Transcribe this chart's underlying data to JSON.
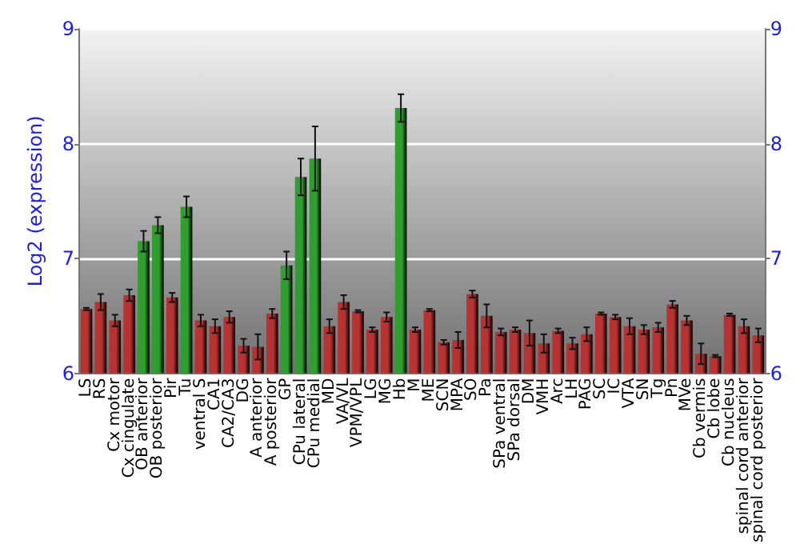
{
  "chart_data": {
    "type": "bar",
    "ylabel": "Log2 (expression)",
    "categories": [
      "LS",
      "RS",
      "Cx motor",
      "Cx cingulate",
      "OB anterior",
      "OB posterior",
      "Pir",
      "Tu",
      "ventral S",
      "CA1",
      "CA2/CA3",
      "DG",
      "A anterior",
      "A posterior",
      "GP",
      "CPu lateral",
      "CPu medial",
      "MD",
      "VA/VL",
      "VPM/VPL",
      "LG",
      "MG",
      "Hb",
      "M",
      "ME",
      "SCN",
      "MPA",
      "SO",
      "Pa",
      "SPa ventral",
      "SPa dorsal",
      "DM",
      "VMH",
      "Arc",
      "LH",
      "PAG",
      "SC",
      "IC",
      "VTA",
      "SN",
      "Tg",
      "Pn",
      "MVe",
      "Cb vermis",
      "Cb lobe",
      "Cb nucleus",
      "spinal cord anterior",
      "spinal cord posterior"
    ],
    "values": [
      6.56,
      6.62,
      6.46,
      6.68,
      7.15,
      7.29,
      6.66,
      7.45,
      6.46,
      6.41,
      6.49,
      6.24,
      6.23,
      6.52,
      6.94,
      7.71,
      7.87,
      6.41,
      6.62,
      6.54,
      6.38,
      6.49,
      8.31,
      6.38,
      6.55,
      6.27,
      6.29,
      6.69,
      6.5,
      6.36,
      6.38,
      6.35,
      6.26,
      6.37,
      6.26,
      6.34,
      6.52,
      6.49,
      6.41,
      6.38,
      6.4,
      6.6,
      6.46,
      6.17,
      6.15,
      6.51,
      6.41,
      6.33
    ],
    "errors": [
      0.01,
      0.07,
      0.05,
      0.05,
      0.09,
      0.07,
      0.04,
      0.09,
      0.05,
      0.06,
      0.05,
      0.06,
      0.11,
      0.04,
      0.12,
      0.16,
      0.28,
      0.06,
      0.06,
      0.01,
      0.02,
      0.04,
      0.12,
      0.02,
      0.01,
      0.02,
      0.07,
      0.03,
      0.1,
      0.03,
      0.02,
      0.11,
      0.08,
      0.02,
      0.05,
      0.06,
      0.01,
      0.02,
      0.07,
      0.04,
      0.04,
      0.03,
      0.04,
      0.09,
      0.01,
      0.01,
      0.06,
      0.06
    ],
    "colors": [
      "#b83232",
      "#b83232",
      "#b83232",
      "#b83232",
      "#2e9e2e",
      "#2e9e2e",
      "#b83232",
      "#2e9e2e",
      "#b83232",
      "#b83232",
      "#b83232",
      "#b83232",
      "#b83232",
      "#b83232",
      "#2e9e2e",
      "#2e9e2e",
      "#2e9e2e",
      "#b83232",
      "#b83232",
      "#b83232",
      "#b83232",
      "#b83232",
      "#2e9e2e",
      "#b83232",
      "#b83232",
      "#b83232",
      "#b83232",
      "#b83232",
      "#b83232",
      "#b83232",
      "#b83232",
      "#b83232",
      "#b83232",
      "#b83232",
      "#b83232",
      "#b83232",
      "#b83232",
      "#b83232",
      "#b83232",
      "#b83232",
      "#b83232",
      "#b83232",
      "#b83232",
      "#b83232",
      "#b83232",
      "#b83232",
      "#b83232",
      "#b83232"
    ],
    "ylim": [
      6,
      9
    ],
    "yticks": [
      6,
      7,
      8,
      9
    ],
    "y2lim": [
      6,
      9
    ],
    "y2ticks": [
      6,
      7,
      8,
      9
    ],
    "grid": "y"
  }
}
